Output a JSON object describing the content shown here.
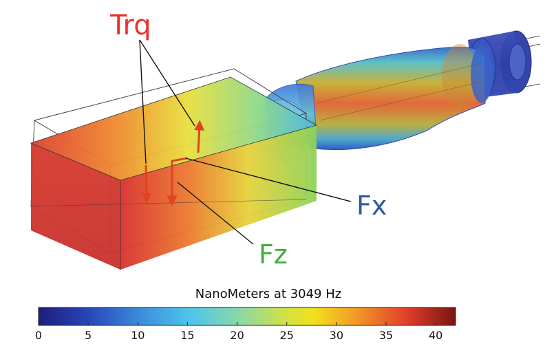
{
  "labels": {
    "torque": "Trq",
    "force_x": "Fx",
    "force_z": "Fz"
  },
  "colorbar": {
    "title": "NanoMeters at 3049 Hz",
    "ticks": [
      "0",
      "5",
      "10",
      "15",
      "20",
      "25",
      "30",
      "35",
      "40"
    ],
    "range": [
      0,
      42
    ],
    "unit": "nm"
  },
  "colors": {
    "torque_label": "#e8322a",
    "fx_label": "#2c5aa0",
    "fz_label": "#3fae3f",
    "arrow": "#e0431f",
    "leader": "#111111"
  }
}
